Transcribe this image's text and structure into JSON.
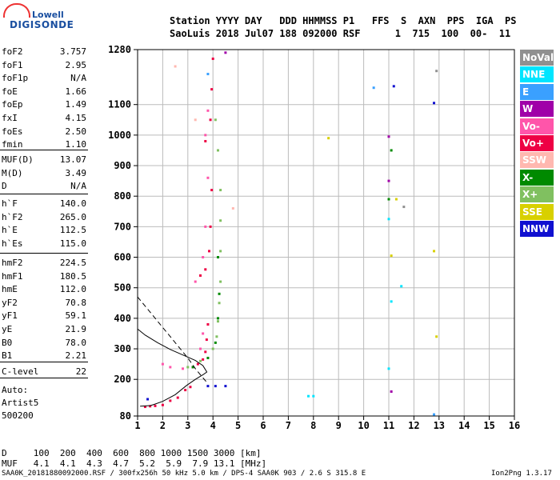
{
  "logo": {
    "line1": "Lowell",
    "line2": "DIGISONDE"
  },
  "header": {
    "line1": "Station YYYY DAY   DDD HHMMSS P1   FFS  S  AXN  PPS  IGA  PS",
    "line2": "SaoLuis 2018 Jul07 188 092000 RSF      1  715  100  00-  11"
  },
  "params_group1": [
    {
      "key": "foF2",
      "value": "3.757"
    },
    {
      "key": "foF1",
      "value": "2.95"
    },
    {
      "key": "foF1p",
      "value": "N/A"
    },
    {
      "key": "foE",
      "value": "1.66"
    },
    {
      "key": "foEp",
      "value": "1.49"
    },
    {
      "key": "fxI",
      "value": "4.15"
    },
    {
      "key": "foEs",
      "value": "2.50"
    },
    {
      "key": "fmin",
      "value": "1.10"
    }
  ],
  "params_group2": [
    {
      "key": "MUF(D)",
      "value": "13.07"
    },
    {
      "key": "M(D)",
      "value": "3.49"
    },
    {
      "key": "D",
      "value": "N/A"
    }
  ],
  "params_group3": [
    {
      "key": "h`F",
      "value": "140.0"
    },
    {
      "key": "h`F2",
      "value": "265.0"
    },
    {
      "key": "h`E",
      "value": "112.5"
    },
    {
      "key": "h`Es",
      "value": "115.0"
    }
  ],
  "params_group4": [
    {
      "key": "hmF2",
      "value": "224.5"
    },
    {
      "key": "hmF1",
      "value": "180.5"
    },
    {
      "key": "hmE",
      "value": "112.0"
    },
    {
      "key": "yF2",
      "value": "70.8"
    },
    {
      "key": "yF1",
      "value": "59.1"
    },
    {
      "key": "yE",
      "value": "21.9"
    },
    {
      "key": "B0",
      "value": "78.0"
    },
    {
      "key": "B1",
      "value": "2.21"
    }
  ],
  "params_group5": [
    {
      "key": "C-level",
      "value": "22"
    }
  ],
  "notes": [
    "Auto:",
    "Artist5",
    "500200"
  ],
  "legend": [
    {
      "label": "NoVal",
      "color": "#909090",
      "text": "#ffffff"
    },
    {
      "label": "NNE",
      "color": "#00e5ff",
      "text": "#ffffff"
    },
    {
      "label": "E",
      "color": "#3aa0ff",
      "text": "#ffffff"
    },
    {
      "label": "W",
      "color": "#a000a8",
      "text": "#ffffff"
    },
    {
      "label": "Vo-",
      "color": "#ff55aa",
      "text": "#ffffff"
    },
    {
      "label": "Vo+",
      "color": "#ee0044",
      "text": "#ffffff"
    },
    {
      "label": "SSW",
      "color": "#ffb8b0",
      "text": "#ffffff"
    },
    {
      "label": "X-",
      "color": "#008a00",
      "text": "#ffffff"
    },
    {
      "label": "X+",
      "color": "#80c060",
      "text": "#ffffff"
    },
    {
      "label": "SSE",
      "color": "#d8d000",
      "text": "#ffffff"
    },
    {
      "label": "NNW",
      "color": "#1010d0",
      "text": "#ffffff"
    }
  ],
  "bottom": {
    "d_row": "D     100  200  400  600  800 1000 1500 3000 [km]",
    "muf_row": "MUF   4.1  4.1  4.3  4.7  5.2  5.9  7.9 13.1 [MHz]"
  },
  "footer": {
    "left": "SAA0K_20181880092000.RSF / 300fx256h 50 kHz 5.0 km / DPS-4 SAA0K 903 / 2.6 S 315.8 E",
    "right": "Ion2Png 1.3.17"
  },
  "chart_data": {
    "type": "scatter",
    "x_ticks": [
      1,
      2,
      3,
      4,
      5,
      6,
      7,
      8,
      9,
      10,
      11,
      12,
      13,
      14,
      15,
      16
    ],
    "y_ticks": [
      80,
      200,
      300,
      400,
      500,
      600,
      700,
      800,
      900,
      1000,
      1100,
      1280
    ],
    "xlim": [
      1,
      16
    ],
    "ylim": [
      80,
      1280
    ],
    "grid": true,
    "legend_position": "right",
    "series": [
      {
        "name": "Vo+",
        "color": "#ee0044",
        "points": [
          [
            1.3,
            110
          ],
          [
            1.5,
            112
          ],
          [
            1.7,
            113
          ],
          [
            2.0,
            116
          ],
          [
            2.3,
            130
          ],
          [
            2.6,
            140
          ],
          [
            2.9,
            165
          ],
          [
            3.1,
            175
          ],
          [
            3.2,
            240
          ],
          [
            3.4,
            250
          ],
          [
            3.6,
            265
          ],
          [
            3.7,
            290
          ],
          [
            3.75,
            330
          ],
          [
            3.8,
            380
          ],
          [
            3.5,
            540
          ],
          [
            3.7,
            560
          ],
          [
            3.85,
            620
          ],
          [
            3.9,
            700
          ],
          [
            3.95,
            820
          ],
          [
            3.7,
            980
          ],
          [
            3.9,
            1050
          ],
          [
            3.95,
            1150
          ],
          [
            4.0,
            1250
          ]
        ]
      },
      {
        "name": "Vo-",
        "color": "#ff55aa",
        "points": [
          [
            2.0,
            250
          ],
          [
            2.3,
            240
          ],
          [
            2.8,
            235
          ],
          [
            3.2,
            240
          ],
          [
            3.5,
            300
          ],
          [
            3.6,
            350
          ],
          [
            3.3,
            520
          ],
          [
            3.6,
            600
          ],
          [
            3.7,
            700
          ],
          [
            3.8,
            860
          ],
          [
            3.7,
            1000
          ],
          [
            3.8,
            1080
          ]
        ]
      },
      {
        "name": "X+",
        "color": "#80c060",
        "points": [
          [
            3.0,
            240
          ],
          [
            3.5,
            260
          ],
          [
            4.0,
            300
          ],
          [
            4.15,
            340
          ],
          [
            4.2,
            390
          ],
          [
            4.25,
            450
          ],
          [
            4.3,
            520
          ],
          [
            4.3,
            620
          ],
          [
            4.3,
            720
          ],
          [
            4.3,
            820
          ],
          [
            4.2,
            950
          ],
          [
            4.1,
            1050
          ]
        ]
      },
      {
        "name": "X-",
        "color": "#008a00",
        "points": [
          [
            3.2,
            240
          ],
          [
            3.8,
            270
          ],
          [
            4.1,
            320
          ],
          [
            4.2,
            400
          ],
          [
            4.25,
            480
          ],
          [
            4.2,
            600
          ],
          [
            11.0,
            790
          ],
          [
            11.1,
            950
          ]
        ]
      },
      {
        "name": "NNW",
        "color": "#1010d0",
        "points": [
          [
            3.8,
            178
          ],
          [
            4.1,
            178
          ],
          [
            4.5,
            178
          ],
          [
            1.4,
            135
          ],
          [
            11.2,
            1160
          ],
          [
            12.8,
            1105
          ]
        ]
      },
      {
        "name": "W",
        "color": "#a000a8",
        "points": [
          [
            11.0,
            850
          ],
          [
            11.0,
            995
          ],
          [
            11.1,
            160
          ],
          [
            4.5,
            1270
          ]
        ]
      },
      {
        "name": "SSE",
        "color": "#d8d000",
        "points": [
          [
            8.6,
            990
          ],
          [
            11.3,
            790
          ],
          [
            12.8,
            620
          ],
          [
            12.9,
            340
          ],
          [
            11.1,
            605
          ]
        ]
      },
      {
        "name": "NNE",
        "color": "#00e5ff",
        "points": [
          [
            7.8,
            145
          ],
          [
            8.0,
            145
          ],
          [
            11.0,
            725
          ],
          [
            11.5,
            505
          ],
          [
            11.1,
            455
          ],
          [
            11.0,
            235
          ]
        ]
      },
      {
        "name": "E",
        "color": "#3aa0ff",
        "points": [
          [
            10.4,
            1155
          ],
          [
            12.8,
            85
          ],
          [
            3.8,
            1200
          ]
        ]
      },
      {
        "name": "SSW",
        "color": "#ffb8b0",
        "points": [
          [
            2.5,
            1225
          ],
          [
            4.8,
            760
          ],
          [
            3.3,
            1050
          ]
        ]
      },
      {
        "name": "NoVal",
        "color": "#909090",
        "points": [
          [
            12.9,
            1210
          ],
          [
            11.6,
            765
          ]
        ]
      }
    ],
    "profile_solid": [
      [
        1.1,
        112
      ],
      [
        1.5,
        114
      ],
      [
        1.66,
        118
      ],
      [
        2.0,
        128
      ],
      [
        2.5,
        150
      ],
      [
        2.95,
        180
      ],
      [
        3.3,
        200
      ],
      [
        3.6,
        215
      ],
      [
        3.757,
        224
      ],
      [
        3.6,
        245
      ],
      [
        3.3,
        262
      ],
      [
        2.8,
        280
      ],
      [
        2.3,
        298
      ],
      [
        1.8,
        320
      ],
      [
        1.3,
        345
      ],
      [
        1.0,
        365
      ]
    ],
    "profile_dashed": [
      [
        1.0,
        470
      ],
      [
        1.3,
        440
      ],
      [
        1.6,
        410
      ],
      [
        2.0,
        370
      ],
      [
        2.5,
        320
      ],
      [
        3.0,
        270
      ],
      [
        3.3,
        235
      ],
      [
        3.55,
        210
      ],
      [
        3.757,
        190
      ]
    ]
  }
}
